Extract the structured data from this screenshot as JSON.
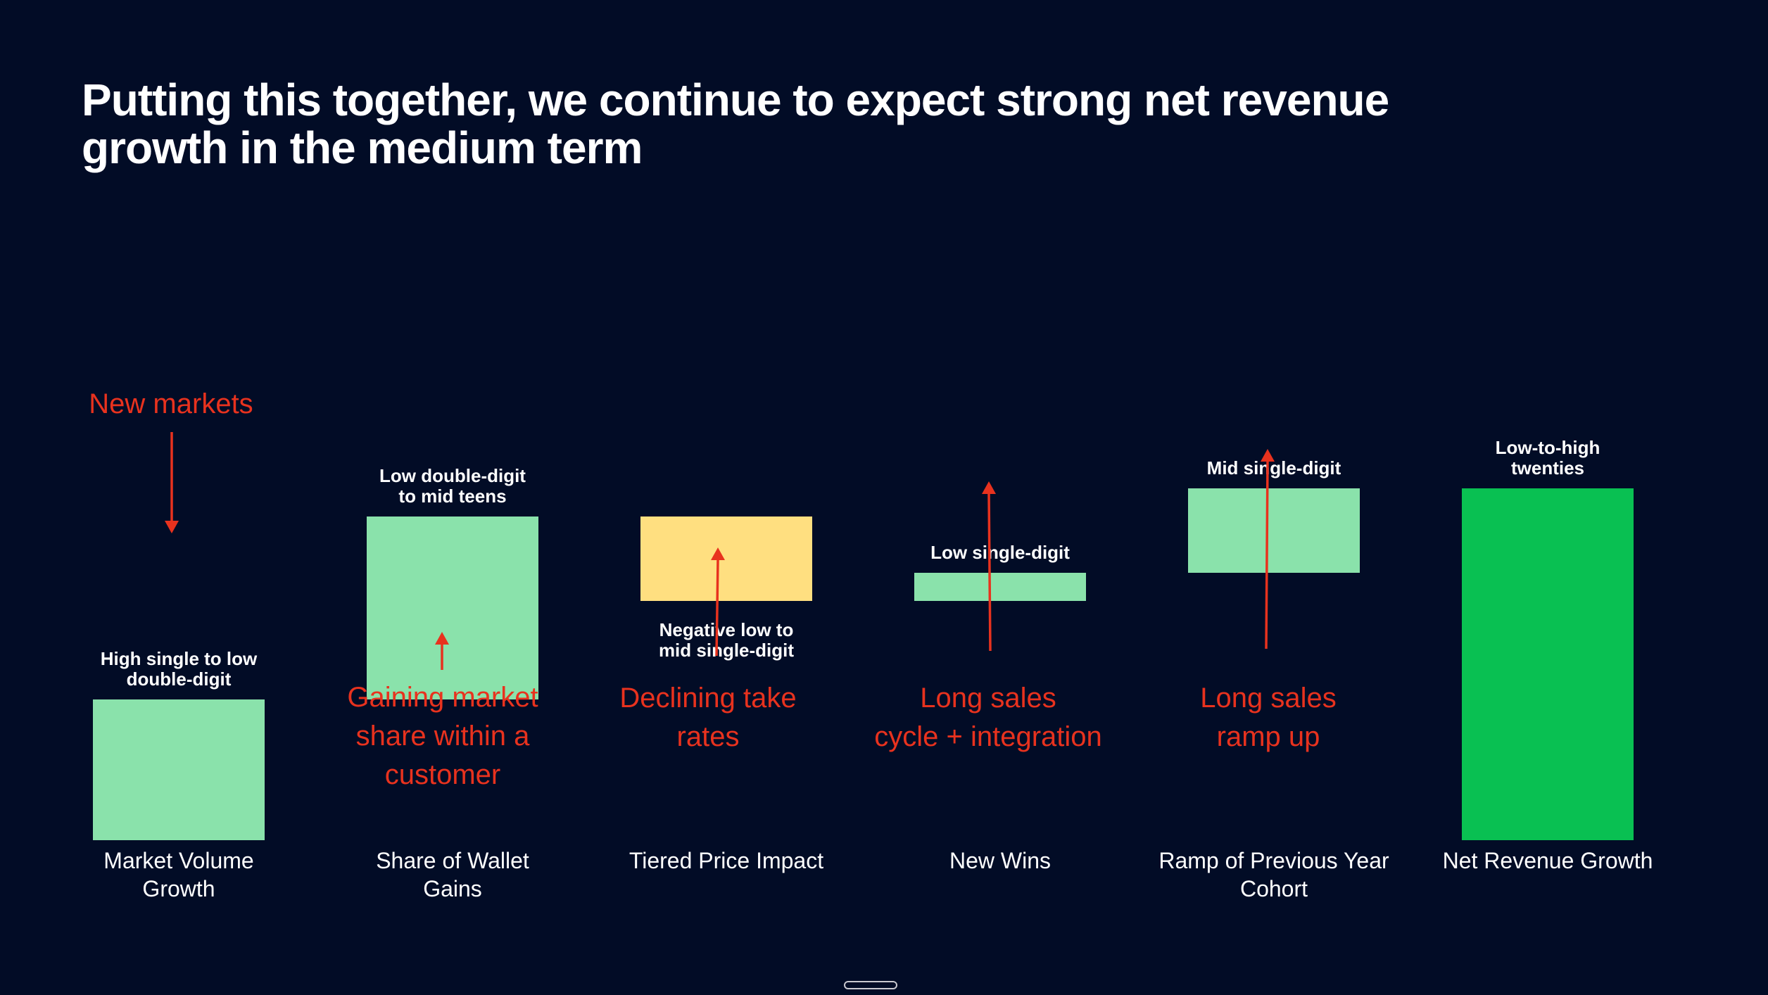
{
  "slide": {
    "title": "Putting this together, we continue to expect strong net revenue growth in the medium term"
  },
  "chart_data": {
    "type": "bar",
    "subtype": "waterfall",
    "title": "",
    "xlabel": "",
    "ylabel": "",
    "grid": false,
    "legend": "none",
    "categories": [
      "Market Volume Growth",
      "Share of Wallet Gains",
      "Tiered Price Impact",
      "New Wins",
      "Ramp of Previous Year Cohort",
      "Net Revenue Growth"
    ],
    "category_label_lines": [
      [
        "Market Volume",
        "Growth"
      ],
      [
        "Share of Wallet",
        "Gains"
      ],
      [
        "Tiered Price Impact"
      ],
      [
        "New Wins"
      ],
      [
        "Ramp of Previous Year",
        "Cohort"
      ],
      [
        "Net Revenue Growth"
      ]
    ],
    "bars": [
      {
        "category": "Market Volume Growth",
        "start": 0,
        "end": 10,
        "label_lines": [
          "High single to low",
          "double-digit"
        ],
        "label_position": "above",
        "color": "#8ae2ab"
      },
      {
        "category": "Share of Wallet Gains",
        "start": 10,
        "end": 23,
        "label_lines": [
          "Low double-digit",
          "to mid teens"
        ],
        "label_position": "above",
        "color": "#8ae2ab"
      },
      {
        "category": "Tiered Price Impact",
        "start": 23,
        "end": 17,
        "label_lines": [
          "Negative low to",
          "mid single-digit"
        ],
        "label_position": "below",
        "color": "#ffdf80"
      },
      {
        "category": "New Wins",
        "start": 17,
        "end": 19,
        "label_lines": [
          "Low single-digit"
        ],
        "label_position": "above",
        "color": "#8ae2ab"
      },
      {
        "category": "Ramp of Previous Year Cohort",
        "start": 19,
        "end": 25,
        "label_lines": [
          "Mid single-digit"
        ],
        "label_position": "above",
        "color": "#8ae2ab"
      },
      {
        "category": "Net Revenue Growth",
        "start": 0,
        "end": 25,
        "label_lines": [
          "Low-to-high",
          "twenties"
        ],
        "label_position": "above",
        "color": "#09c052"
      }
    ],
    "annotations": [
      {
        "category_index": 0,
        "lines": [
          "New markets"
        ],
        "arrow": "down"
      },
      {
        "category_index": 1,
        "lines": [
          "Gaining market",
          "share within a",
          "customer"
        ],
        "arrow": "up"
      },
      {
        "category_index": 2,
        "lines": [
          "Declining take",
          "rates"
        ],
        "arrow": "up"
      },
      {
        "category_index": 3,
        "lines": [
          "Long sales",
          "cycle + integration"
        ],
        "arrow": "up"
      },
      {
        "category_index": 4,
        "lines": [
          "Long sales",
          "ramp up"
        ],
        "arrow": "up"
      }
    ],
    "colors": {
      "background": "#020c26",
      "increase": "#8ae2ab",
      "decrease": "#ffdf80",
      "total": "#09c052",
      "annotation": "#e8321e",
      "text": "#ffffff"
    }
  }
}
